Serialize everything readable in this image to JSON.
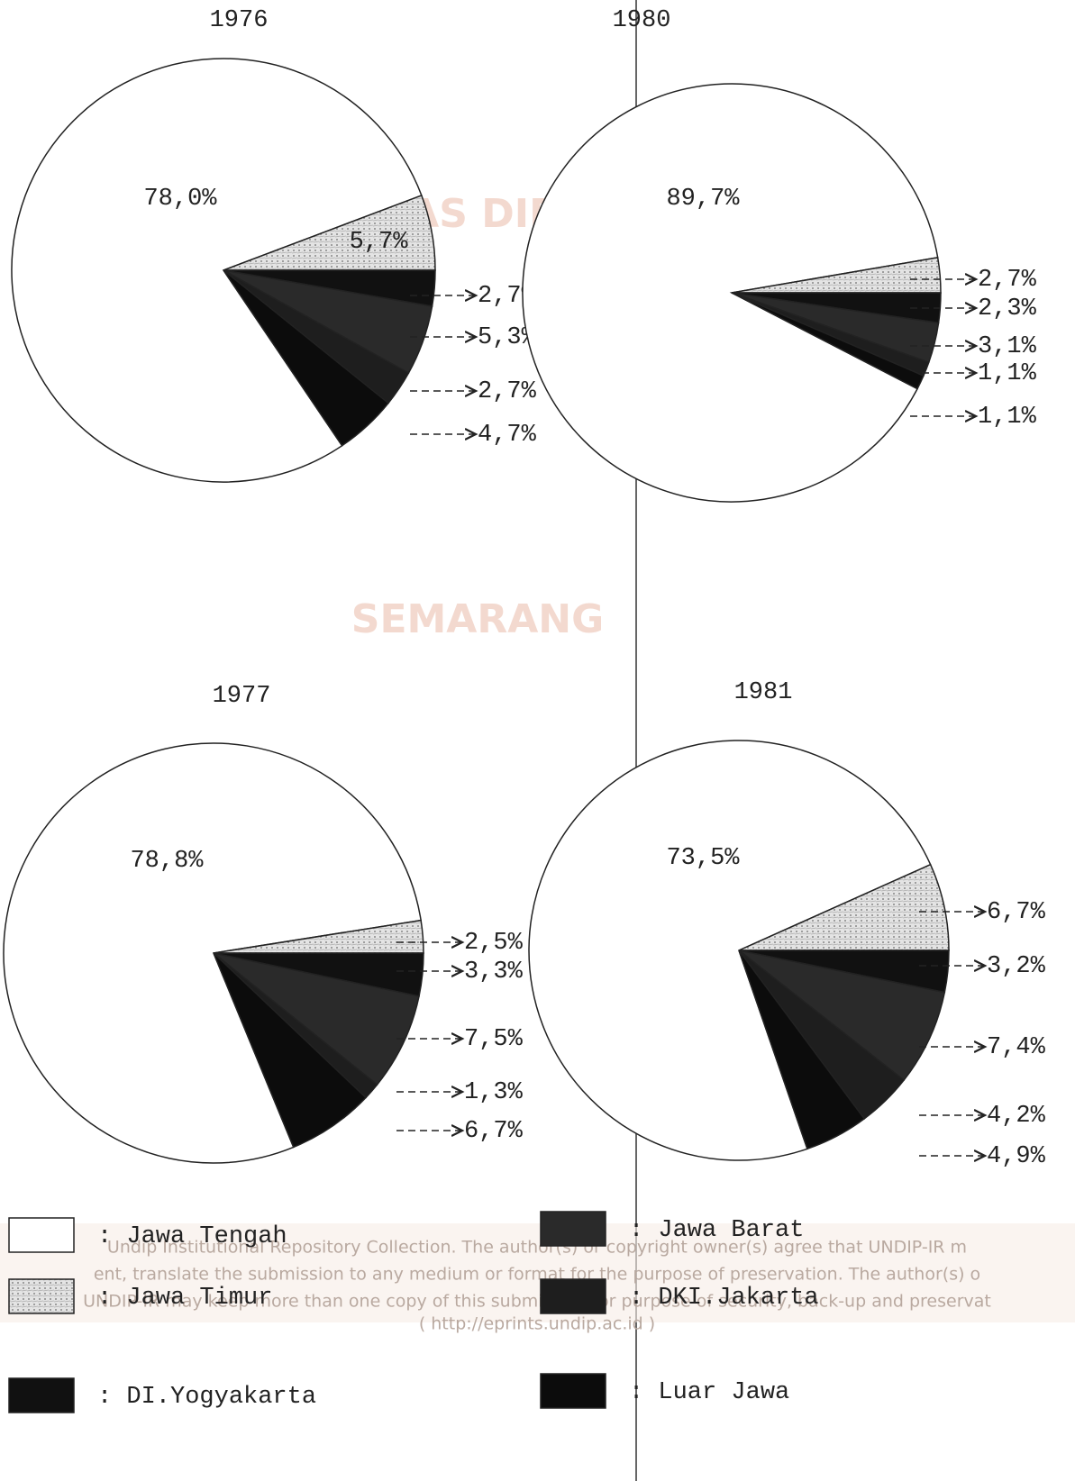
{
  "chart_data": [
    {
      "type": "pie",
      "title": "1976",
      "values": [
        78.0,
        5.7,
        2.7,
        5.3,
        2.7,
        4.7
      ],
      "value_labels": [
        "78,0%",
        "5,7%",
        "2,7%",
        "5,3%",
        "2,7%",
        "4,7%"
      ]
    },
    {
      "type": "pie",
      "title": "1980",
      "values": [
        89.7,
        2.7,
        2.3,
        3.1,
        1.1,
        1.1
      ],
      "value_labels": [
        "89,7%",
        "2,7%",
        "2,3%",
        "3,1%",
        "1,1%",
        "1,1%"
      ]
    },
    {
      "type": "pie",
      "title": "1977",
      "values": [
        78.8,
        2.5,
        3.3,
        7.5,
        1.3,
        6.7
      ],
      "value_labels": [
        "78,8%",
        "2,5%",
        "3,3%",
        "7,5%",
        "1,3%",
        "6,7%"
      ]
    },
    {
      "type": "pie",
      "title": "1981",
      "values": [
        73.5,
        6.7,
        3.2,
        7.4,
        4.2,
        4.9
      ],
      "value_labels": [
        "73,5%",
        "6,7%",
        "3,2%",
        "7,4%",
        "4,2%",
        "4,9%"
      ]
    }
  ],
  "legend": [
    {
      "name": ": Jawa Tengah",
      "color": "#ffffff"
    },
    {
      "name": ": Jawa Timur",
      "color": "url(#dots)"
    },
    {
      "name": ": DI.Yogyakarta",
      "color": "#111111"
    },
    {
      "name": ": Jawa Barat",
      "color": "#2a2a2a"
    },
    {
      "name": ": DKI.Jakarta",
      "color": "#1e1e1e"
    },
    {
      "name": ": Luar Jawa",
      "color": "#0c0c0c"
    }
  ],
  "watermark": {
    "logo_top": "UNIVERSITAS DIPONEGORO",
    "logo_bottom": "SEMARANG",
    "lines": [
      "Undip Institutional Repository Collection. The author(s) or copyright owner(s) agree that UNDIP-IR m",
      "ent, translate the submission to any medium or format for the purpose of preservation. The author(s) o",
      "UNDIP-IR may keep more than one copy of this submission for purpose of security, back-up and preservat",
      "( http://eprints.undip.ac.id )"
    ]
  }
}
